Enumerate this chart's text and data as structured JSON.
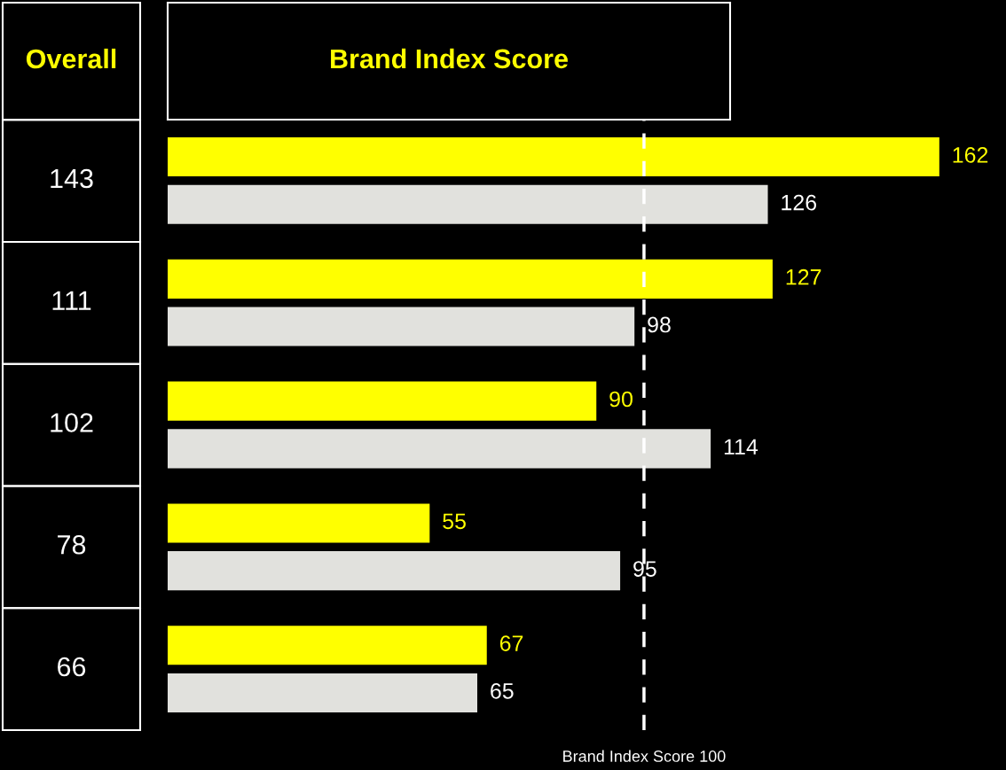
{
  "chart_data": [
    {
      "type": "other",
      "title": "Overall",
      "annotations": [
        "143",
        "111",
        "102",
        "78",
        "66"
      ]
    },
    {
      "type": "bar",
      "orientation": "horizontal",
      "title": "Brand Index Score",
      "categories": [
        null,
        null,
        null,
        null,
        null
      ],
      "series": [
        {
          "color": "#ffff00",
          "values": [
            162,
            127,
            90,
            55,
            67
          ]
        },
        {
          "color": "#e1e1dd",
          "values": [
            126,
            98,
            114,
            95,
            65
          ]
        }
      ],
      "xlim": [
        0,
        176
      ],
      "data_labels": true,
      "ref_lines": [
        {
          "axis": "x",
          "value": 100,
          "label": "Brand Index Score 100",
          "color": "#ffffff",
          "line_style": "dashed"
        }
      ]
    }
  ]
}
